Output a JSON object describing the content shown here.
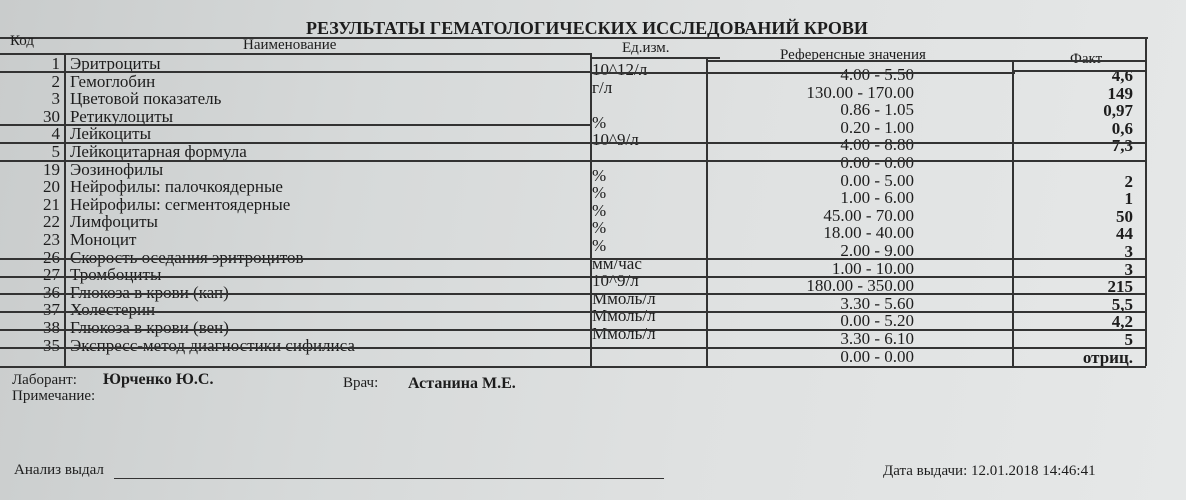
{
  "title": "РЕЗУЛЬТАТЫ ГЕМАТОЛОГИЧЕСКИХ ИССЛЕДОВАНИЙ КРОВИ",
  "headers": {
    "code": "Код",
    "name": "Наименование",
    "unit": "Ед.изм.",
    "ref": "Референсные значения",
    "fact": "Факт"
  },
  "rows": [
    {
      "code": "1",
      "name": "Эритроциты",
      "unit": "10^12/л",
      "ref": "4.00 - 5.50",
      "fact": "4,6"
    },
    {
      "code": "2",
      "name": "Гемоглобин",
      "unit": "г/л",
      "ref": "130.00 - 170.00",
      "fact": "149"
    },
    {
      "code": "3",
      "name": "Цветовой показатель",
      "unit": "",
      "ref": "0.86 - 1.05",
      "fact": "0,97"
    },
    {
      "code": "30",
      "name": "Ретикулоциты",
      "unit": "%",
      "ref": "0.20 - 1.00",
      "fact": "0,6"
    },
    {
      "code": "4",
      "name": "Лейкоциты",
      "unit": "10^9/л",
      "ref": "4.00 - 8.80",
      "fact": "7,3"
    },
    {
      "code": "5",
      "name": "Лейкоцитарная формула",
      "unit": "",
      "ref": "0.00 - 0.00",
      "fact": ""
    },
    {
      "code": "19",
      "name": "Эозинофилы",
      "unit": "%",
      "ref": "0.00 - 5.00",
      "fact": "2"
    },
    {
      "code": "20",
      "name": "Нейрофилы: палочкоядерные",
      "unit": "%",
      "ref": "1.00 - 6.00",
      "fact": "1"
    },
    {
      "code": "21",
      "name": "Нейрофилы: сегментоядерные",
      "unit": "%",
      "ref": "45.00 - 70.00",
      "fact": "50"
    },
    {
      "code": "22",
      "name": "Лимфоциты",
      "unit": "%",
      "ref": "18.00 - 40.00",
      "fact": "44"
    },
    {
      "code": "23",
      "name": "Моноцит",
      "unit": "%",
      "ref": "2.00 - 9.00",
      "fact": "3"
    },
    {
      "code": "26",
      "name": "Скорость оседания эритроцитов",
      "unit": "мм/час",
      "ref": "1.00 - 10.00",
      "fact": "3"
    },
    {
      "code": "27",
      "name": "Тромбоциты",
      "unit": "10^9/л",
      "ref": "180.00 - 350.00",
      "fact": "215"
    },
    {
      "code": "36",
      "name": "Глюкоза в крови (кап)",
      "unit": "Ммоль/л",
      "ref": "3.30 - 5.60",
      "fact": "5,5"
    },
    {
      "code": "37",
      "name": "Холестерин",
      "unit": "Ммоль/л",
      "ref": "0.00 - 5.20",
      "fact": "4,2"
    },
    {
      "code": "38",
      "name": "Глюкоза в крови (вен)",
      "unit": "Ммоль/л",
      "ref": "3.30 - 6.10",
      "fact": "5"
    },
    {
      "code": "35",
      "name": "Экспресс-метод диагностики сифилиса",
      "unit": "",
      "ref": "0.00 - 0.00",
      "fact": "отриц."
    }
  ],
  "footer": {
    "lab_label": "Лаборант:",
    "lab_name": "Юрченко Ю.С.",
    "doctor_label": "Врач:",
    "doctor_name": "Астанина М.Е.",
    "note_label": "Примечание:",
    "issued_by_label": "Анализ выдал",
    "issue_date": "Дата выдачи: 12.01.2018 14:46:41"
  }
}
